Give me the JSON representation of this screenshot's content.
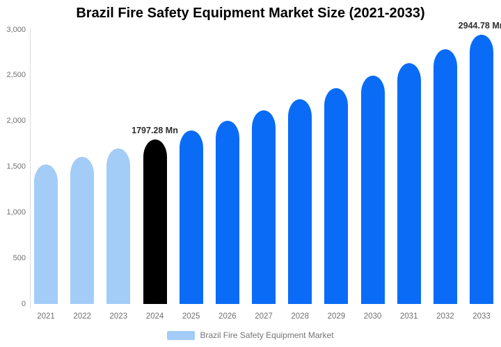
{
  "title": "Brazil Fire Safety Equipment Market Size (2021-2033)",
  "legend": {
    "label": "Brazil Fire Safety Equipment Market"
  },
  "colors": {
    "historical_bar": "#a3ccf7",
    "highlight_bar": "#000000",
    "forecast_bar": "#0a6cf6",
    "title_text": "#000000",
    "axis_text": "#707070",
    "legend_text": "#757575",
    "annotation_text": "#2e2e2e",
    "axis_line": "#d9d9d9",
    "background": "#ffffff"
  },
  "chart_data": {
    "type": "bar",
    "title": "Brazil Fire Safety Equipment Market Size (2021-2033)",
    "unit": "Mn",
    "categories": [
      "2021",
      "2022",
      "2023",
      "2024",
      "2025",
      "2026",
      "2027",
      "2028",
      "2029",
      "2030",
      "2031",
      "2032",
      "2033"
    ],
    "series": [
      {
        "name": "Brazil Fire Safety Equipment Market",
        "values": [
          1524,
          1610,
          1701,
          1797.28,
          1899,
          2006,
          2119,
          2238,
          2365,
          2498,
          2639,
          2788,
          2944.78
        ]
      }
    ],
    "bar_colors": [
      "#a3ccf7",
      "#a3ccf7",
      "#a3ccf7",
      "#000000",
      "#0a6cf6",
      "#0a6cf6",
      "#0a6cf6",
      "#0a6cf6",
      "#0a6cf6",
      "#0a6cf6",
      "#0a6cf6",
      "#0a6cf6",
      "#0a6cf6"
    ],
    "annotations": [
      {
        "index": 3,
        "text": "1797.28 Mn"
      },
      {
        "index": 12,
        "text": "2944.78 Mn"
      }
    ],
    "ylim": [
      0,
      3000
    ],
    "yticks": [
      {
        "value": 0,
        "label": "0"
      },
      {
        "value": 500,
        "label": "500"
      },
      {
        "value": 1000,
        "label": "1,000"
      },
      {
        "value": 1500,
        "label": "1,500"
      },
      {
        "value": 2000,
        "label": "2,000"
      },
      {
        "value": 2500,
        "label": "2,500"
      },
      {
        "value": 3000,
        "label": "3,000"
      }
    ],
    "xlabel": "",
    "ylabel": "",
    "grid": false,
    "legend_position": "bottom"
  }
}
